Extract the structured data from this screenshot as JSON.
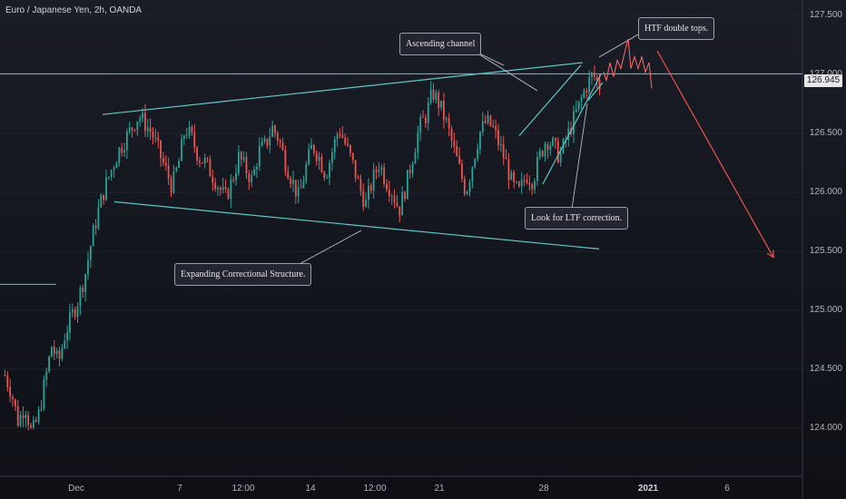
{
  "symbol": "Euro / Japanese Yen, 2h, OANDA",
  "current_price": "126.945",
  "annotations": {
    "ascending_channel": "Ascending channel",
    "htf_double_tops": "HTF double tops.",
    "ltf_correction": "Look for LTF correction.",
    "expanding_structure": "Expanding Correctional Structure."
  },
  "colors": {
    "background": "#131722",
    "bull": "#26a69a",
    "bear": "#ef5350",
    "trendline": "#5ec8c8",
    "projection": "#ef5350",
    "path": "#ff6b6b"
  },
  "chart_data": {
    "type": "candlestick",
    "y_ticks": [
      "127.500",
      "127.000",
      "126.500",
      "126.000",
      "125.500",
      "125.000",
      "124.500",
      "124.000"
    ],
    "x_ticks": [
      {
        "label": "Dec",
        "bold": false
      },
      {
        "label": "7",
        "bold": false
      },
      {
        "label": "12:00",
        "bold": false
      },
      {
        "label": "14",
        "bold": false
      },
      {
        "label": "12:00",
        "bold": false
      },
      {
        "label": "21",
        "bold": false
      },
      {
        "label": "28",
        "bold": false
      },
      {
        "label": "2021",
        "bold": true
      },
      {
        "label": "6",
        "bold": false
      }
    ],
    "ylim": [
      123.75,
      127.7
    ],
    "horizontal_levels": [
      127.005,
      125.22
    ],
    "close_path": [
      124.45,
      124.3,
      124.05,
      124.2,
      123.95,
      124.1,
      124.4,
      124.7,
      124.55,
      124.8,
      124.95,
      125.1,
      125.3,
      125.6,
      125.85,
      126.05,
      126.2,
      126.35,
      126.45,
      126.55,
      126.65,
      126.58,
      126.5,
      126.35,
      126.2,
      126.05,
      126.25,
      126.55,
      126.45,
      126.3,
      126.25,
      126.15,
      126.05,
      125.95,
      126.1,
      126.3,
      126.2,
      126.1,
      126.35,
      126.4,
      126.55,
      126.45,
      126.25,
      126.1,
      125.95,
      126.2,
      126.4,
      126.3,
      126.15,
      126.35,
      126.55,
      126.4,
      126.25,
      126.05,
      125.9,
      126.1,
      126.25,
      126.1,
      126.0,
      125.85,
      126.05,
      126.3,
      126.55,
      126.65,
      126.85,
      126.75,
      126.6,
      126.4,
      126.2,
      126.0,
      126.25,
      126.5,
      126.6,
      126.55,
      126.4,
      126.25,
      126.05,
      126.0,
      126.15,
      126.1,
      126.3,
      126.45,
      126.4,
      126.3,
      126.45,
      126.6,
      126.75,
      126.9,
      127.0,
      126.9
    ],
    "projection": {
      "from_price": 127.2,
      "to_price": 125.45
    }
  }
}
